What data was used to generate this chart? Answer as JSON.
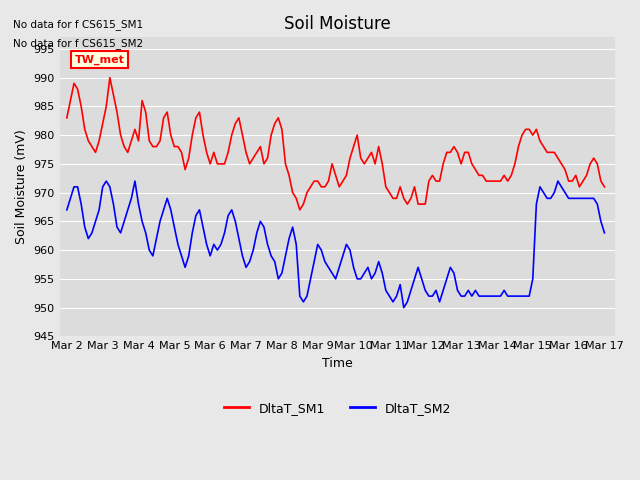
{
  "title": "Soil Moisture",
  "xlabel": "Time",
  "ylabel": "Soil Moisture (mV)",
  "ylim": [
    945,
    997
  ],
  "background_color": "#e8e8e8",
  "plot_bg_color": "#dcdcdc",
  "no_data_text": [
    "No data for f CS615_SM1",
    "No data for f CS615_SM2"
  ],
  "tw_met_label": "TW_met",
  "legend": [
    "DltaT_SM1",
    "DltaT_SM2"
  ],
  "line_colors": [
    "red",
    "blue"
  ],
  "xtick_labels": [
    "Mar 2",
    "Mar 3",
    "Mar 4",
    "Mar 5",
    "Mar 6",
    "Mar 7",
    "Mar 8",
    "Mar 9",
    "Mar 10",
    "Mar 11",
    "Mar 12",
    "Mar 13",
    "Mar 14",
    "Mar 15",
    "Mar 16",
    "Mar 17"
  ],
  "sm1_y": [
    983,
    986,
    989,
    988,
    985,
    981,
    979,
    978,
    977,
    979,
    982,
    985,
    990,
    987,
    984,
    980,
    978,
    977,
    979,
    981,
    979,
    986,
    984,
    979,
    978,
    978,
    979,
    983,
    984,
    980,
    978,
    978,
    977,
    974,
    976,
    980,
    983,
    984,
    980,
    977,
    975,
    977,
    975,
    975,
    975,
    977,
    980,
    982,
    983,
    980,
    977,
    975,
    976,
    977,
    978,
    975,
    976,
    980,
    982,
    983,
    981,
    975,
    973,
    970,
    969,
    967,
    968,
    970,
    971,
    972,
    972,
    971,
    971,
    972,
    975,
    973,
    971,
    972,
    973,
    976,
    978,
    980,
    976,
    975,
    976,
    977,
    975,
    978,
    975,
    971,
    970,
    969,
    969,
    971,
    969,
    968,
    969,
    971,
    968,
    968,
    968,
    972,
    973,
    972,
    972,
    975,
    977,
    977,
    978,
    977,
    975,
    977,
    977,
    975,
    974,
    973,
    973,
    972,
    972,
    972,
    972,
    972,
    973,
    972,
    973,
    975,
    978,
    980,
    981,
    981,
    980,
    981,
    979,
    978,
    977,
    977,
    977,
    976,
    975,
    974,
    972,
    972,
    973,
    971,
    972,
    973,
    975,
    976,
    975,
    972,
    971
  ],
  "sm2_y": [
    967,
    969,
    971,
    971,
    968,
    964,
    962,
    963,
    965,
    967,
    971,
    972,
    971,
    968,
    964,
    963,
    965,
    967,
    969,
    972,
    968,
    965,
    963,
    960,
    959,
    962,
    965,
    967,
    969,
    967,
    964,
    961,
    959,
    957,
    959,
    963,
    966,
    967,
    964,
    961,
    959,
    961,
    960,
    961,
    963,
    966,
    967,
    965,
    962,
    959,
    957,
    958,
    960,
    963,
    965,
    964,
    961,
    959,
    958,
    955,
    956,
    959,
    962,
    964,
    961,
    952,
    951,
    952,
    955,
    958,
    961,
    960,
    958,
    957,
    956,
    955,
    957,
    959,
    961,
    960,
    957,
    955,
    955,
    956,
    957,
    955,
    956,
    958,
    956,
    953,
    952,
    951,
    952,
    954,
    950,
    951,
    953,
    955,
    957,
    955,
    953,
    952,
    952,
    953,
    951,
    953,
    955,
    957,
    956,
    953,
    952,
    952,
    953,
    952,
    953,
    952,
    952,
    952,
    952,
    952,
    952,
    952,
    953,
    952,
    952,
    952,
    952,
    952,
    952,
    952,
    955,
    968,
    971,
    970,
    969,
    969,
    970,
    972,
    971,
    970,
    969,
    969,
    969,
    969,
    969,
    969,
    969,
    969,
    968,
    965,
    963
  ]
}
